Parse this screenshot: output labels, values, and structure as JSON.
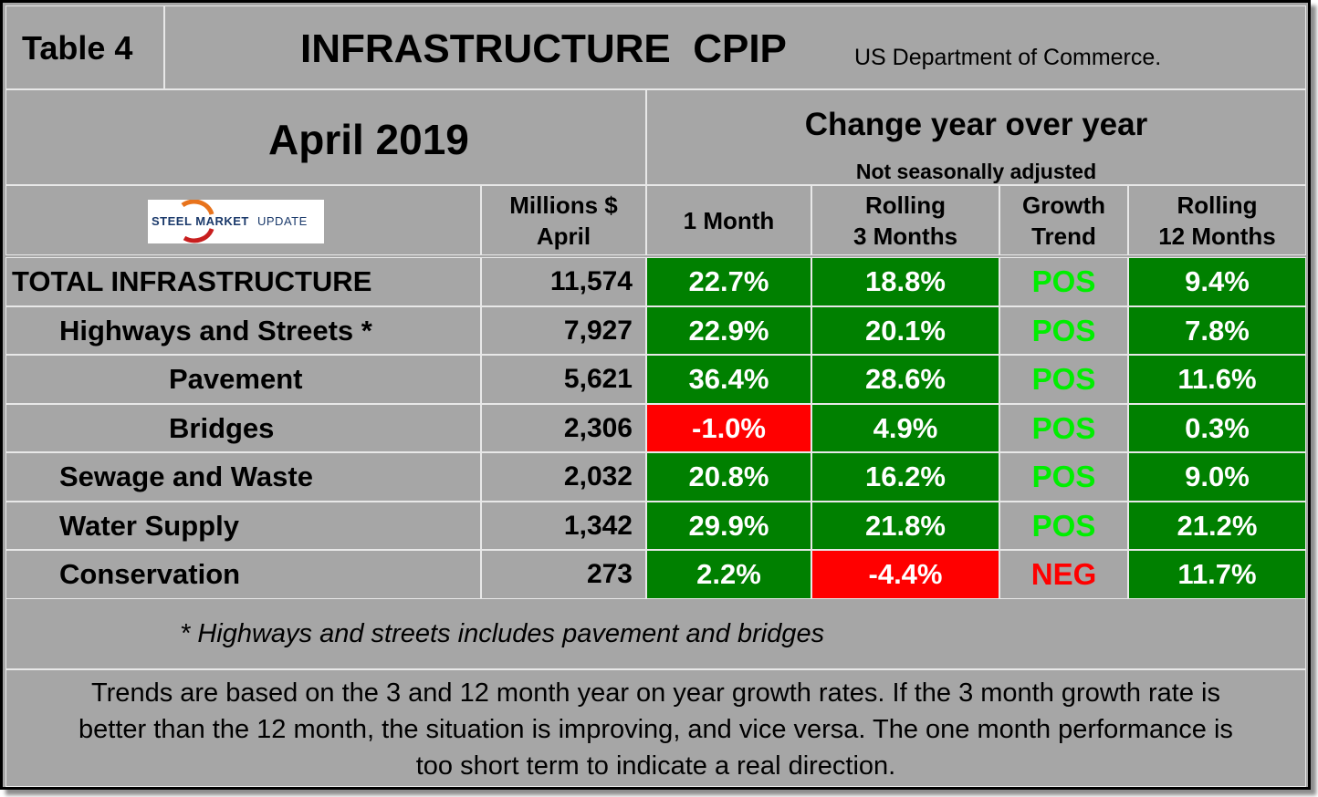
{
  "header": {
    "table_label": "Table 4",
    "title": "INFRASTRUCTURE  CPIP",
    "source": "US Department of Commerce."
  },
  "period": "April 2019",
  "change_header": {
    "title": "Change year over year",
    "subtitle": "Not seasonally adjusted"
  },
  "logo": {
    "text_bold": "STEEL MARKET",
    "text_light": "UPDATE",
    "colors": {
      "navy": "#1b3a6b",
      "orange": "#e8731c",
      "red": "#c81e1e"
    }
  },
  "columns": {
    "millions_line1": "Millions $",
    "millions_line2": "April",
    "one_month": "1 Month",
    "rolling3_line1": "Rolling",
    "rolling3_line2": "3 Months",
    "trend_line1": "Growth",
    "trend_line2": "Trend",
    "rolling12_line1": "Rolling",
    "rolling12_line2": "12 Months"
  },
  "rows": [
    {
      "label": "TOTAL INFRASTRUCTURE",
      "value": "11,574",
      "m1": "22.7%",
      "m1_status": "green",
      "m3": "18.8%",
      "m3_status": "green",
      "trend": "POS",
      "m12": "9.4%",
      "m12_status": "green"
    },
    {
      "label": "Highways and Streets *",
      "value": "7,927",
      "m1": "22.9%",
      "m1_status": "green",
      "m3": "20.1%",
      "m3_status": "green",
      "trend": "POS",
      "m12": "7.8%",
      "m12_status": "green"
    },
    {
      "label": "Pavement",
      "value": "5,621",
      "m1": "36.4%",
      "m1_status": "green",
      "m3": "28.6%",
      "m3_status": "green",
      "trend": "POS",
      "m12": "11.6%",
      "m12_status": "green"
    },
    {
      "label": "Bridges",
      "value": "2,306",
      "m1": "-1.0%",
      "m1_status": "red",
      "m3": "4.9%",
      "m3_status": "green",
      "trend": "POS",
      "m12": "0.3%",
      "m12_status": "green"
    },
    {
      "label": "Sewage and Waste",
      "value": "2,032",
      "m1": "20.8%",
      "m1_status": "green",
      "m3": "16.2%",
      "m3_status": "green",
      "trend": "POS",
      "m12": "9.0%",
      "m12_status": "green"
    },
    {
      "label": "Water Supply",
      "value": "1,342",
      "m1": "29.9%",
      "m1_status": "green",
      "m3": "21.8%",
      "m3_status": "green",
      "trend": "POS",
      "m12": "21.2%",
      "m12_status": "green"
    },
    {
      "label": "Conservation",
      "value": "273",
      "m1": "2.2%",
      "m1_status": "green",
      "m3": "-4.4%",
      "m3_status": "red",
      "trend": "NEG",
      "m12": "11.7%",
      "m12_status": "green"
    }
  ],
  "footnote": "* Highways and streets includes pavement and bridges",
  "notes": {
    "line1": "Trends are based on the 3 and 12 month year on year growth rates. If the 3 month growth rate is",
    "line2": "better than the 12 month, the situation is improving, and vice versa. The one month performance is",
    "line3": "too short term to indicate a real direction."
  },
  "colors": {
    "background": "#a6a6a6",
    "positive_cell": "#008000",
    "negative_cell": "#ff0000",
    "trend_pos": "#00ee00",
    "trend_neg": "#ff0000"
  }
}
